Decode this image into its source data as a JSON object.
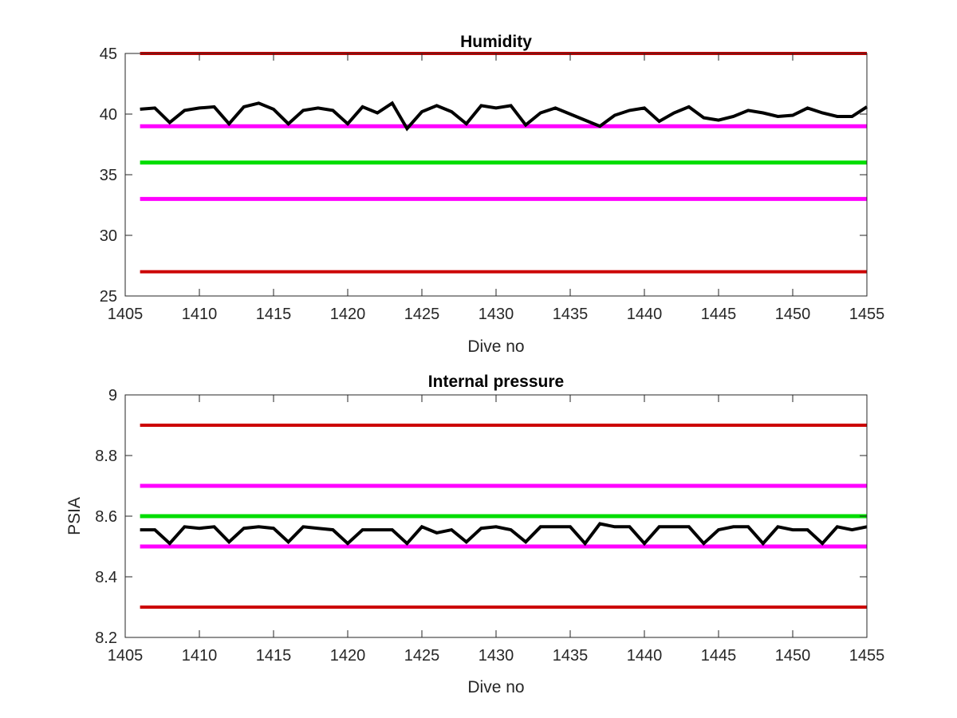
{
  "chart_data": [
    {
      "type": "line",
      "title": "Humidity",
      "xlabel": "Dive no",
      "ylabel": "",
      "xlim": [
        1405,
        1455
      ],
      "ylim": [
        25,
        45
      ],
      "xticks": [
        1405,
        1410,
        1415,
        1420,
        1425,
        1430,
        1435,
        1440,
        1445,
        1450,
        1455
      ],
      "yticks": [
        25,
        30,
        35,
        40,
        45
      ],
      "xtick_labels": [
        "1405",
        "1410",
        "1415",
        "1420",
        "1425",
        "1430",
        "1435",
        "1440",
        "1445",
        "1450",
        "1455"
      ],
      "ytick_labels": [
        "25",
        "30",
        "35",
        "40",
        "45"
      ],
      "grid": false,
      "series": [
        {
          "color": "#cc0000",
          "width": 4,
          "x": [
            1406,
            1455
          ],
          "values": [
            45,
            45
          ]
        },
        {
          "color": "#cc0000",
          "width": 4,
          "x": [
            1406,
            1455
          ],
          "values": [
            27,
            27
          ]
        },
        {
          "color": "#ff00ff",
          "width": 5,
          "x": [
            1406,
            1455
          ],
          "values": [
            39,
            39
          ]
        },
        {
          "color": "#ff00ff",
          "width": 5,
          "x": [
            1406,
            1455
          ],
          "values": [
            33,
            33
          ]
        },
        {
          "color": "#00dd00",
          "width": 5,
          "x": [
            1406,
            1455
          ],
          "values": [
            36,
            36
          ]
        },
        {
          "color": "#000000",
          "width": 4,
          "x": [
            1406,
            1407,
            1408,
            1409,
            1410,
            1411,
            1412,
            1413,
            1414,
            1415,
            1416,
            1417,
            1418,
            1419,
            1420,
            1421,
            1422,
            1423,
            1424,
            1425,
            1426,
            1427,
            1428,
            1429,
            1430,
            1431,
            1432,
            1433,
            1434,
            1435,
            1436,
            1437,
            1438,
            1439,
            1440,
            1441,
            1442,
            1443,
            1444,
            1445,
            1446,
            1447,
            1448,
            1449,
            1450,
            1451,
            1452,
            1453,
            1454,
            1455
          ],
          "values": [
            40.4,
            40.5,
            39.3,
            40.3,
            40.5,
            40.6,
            39.2,
            40.6,
            40.9,
            40.4,
            39.2,
            40.3,
            40.5,
            40.3,
            39.2,
            40.6,
            40.1,
            40.9,
            38.8,
            40.2,
            40.7,
            40.2,
            39.2,
            40.7,
            40.5,
            40.7,
            39.1,
            40.1,
            40.5,
            40.0,
            39.5,
            39.0,
            39.9,
            40.3,
            40.5,
            39.4,
            40.1,
            40.6,
            39.7,
            39.5,
            39.8,
            40.3,
            40.1,
            39.8,
            39.9,
            40.5,
            40.1,
            39.8,
            39.8,
            40.6
          ]
        }
      ]
    },
    {
      "type": "line",
      "title": "Internal pressure",
      "xlabel": "Dive no",
      "ylabel": "PSIA",
      "xlim": [
        1405,
        1455
      ],
      "ylim": [
        8.2,
        9.0
      ],
      "xticks": [
        1405,
        1410,
        1415,
        1420,
        1425,
        1430,
        1435,
        1440,
        1445,
        1450,
        1455
      ],
      "yticks": [
        8.2,
        8.4,
        8.6,
        8.8,
        9.0
      ],
      "xtick_labels": [
        "1405",
        "1410",
        "1415",
        "1420",
        "1425",
        "1430",
        "1435",
        "1440",
        "1445",
        "1450",
        "1455"
      ],
      "ytick_labels": [
        "8.2",
        "8.4",
        "8.6",
        "8.8",
        "9"
      ],
      "grid": false,
      "series": [
        {
          "color": "#cc0000",
          "width": 4,
          "x": [
            1406,
            1455
          ],
          "values": [
            8.9,
            8.9
          ]
        },
        {
          "color": "#cc0000",
          "width": 4,
          "x": [
            1406,
            1455
          ],
          "values": [
            8.3,
            8.3
          ]
        },
        {
          "color": "#ff00ff",
          "width": 5,
          "x": [
            1406,
            1455
          ],
          "values": [
            8.7,
            8.7
          ]
        },
        {
          "color": "#ff00ff",
          "width": 5,
          "x": [
            1406,
            1455
          ],
          "values": [
            8.5,
            8.5
          ]
        },
        {
          "color": "#00dd00",
          "width": 5,
          "x": [
            1406,
            1455
          ],
          "values": [
            8.6,
            8.6
          ]
        },
        {
          "color": "#000000",
          "width": 4,
          "x": [
            1406,
            1407,
            1408,
            1409,
            1410,
            1411,
            1412,
            1413,
            1414,
            1415,
            1416,
            1417,
            1418,
            1419,
            1420,
            1421,
            1422,
            1423,
            1424,
            1425,
            1426,
            1427,
            1428,
            1429,
            1430,
            1431,
            1432,
            1433,
            1434,
            1435,
            1436,
            1437,
            1438,
            1439,
            1440,
            1441,
            1442,
            1443,
            1444,
            1445,
            1446,
            1447,
            1448,
            1449,
            1450,
            1451,
            1452,
            1453,
            1454,
            1455
          ],
          "values": [
            8.555,
            8.555,
            8.51,
            8.565,
            8.56,
            8.565,
            8.515,
            8.56,
            8.565,
            8.56,
            8.515,
            8.565,
            8.56,
            8.555,
            8.51,
            8.555,
            8.555,
            8.555,
            8.51,
            8.565,
            8.545,
            8.555,
            8.515,
            8.56,
            8.565,
            8.555,
            8.515,
            8.565,
            8.565,
            8.565,
            8.51,
            8.575,
            8.565,
            8.565,
            8.51,
            8.565,
            8.565,
            8.565,
            8.51,
            8.555,
            8.565,
            8.565,
            8.51,
            8.565,
            8.555,
            8.555,
            8.51,
            8.565,
            8.555,
            8.565
          ]
        }
      ]
    }
  ]
}
